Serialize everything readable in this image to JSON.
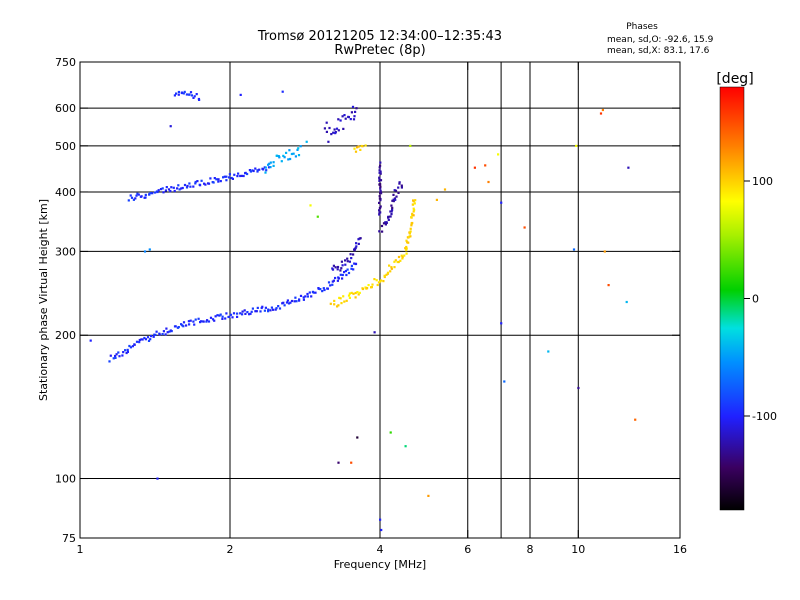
{
  "chart_data": {
    "type": "scatter",
    "title": "Tromsø 20121205 12:34:00–12:35:43",
    "subtitle": "RwPretec (8p)",
    "xlabel": "Frequency [MHz]",
    "ylabel": "Stationary phase Virtual Height [km]",
    "x_scale": "log",
    "y_scale": "log",
    "xlim": [
      1,
      16
    ],
    "ylim": [
      75,
      750
    ],
    "x_ticks": [
      1,
      2,
      4,
      6,
      8,
      10,
      16
    ],
    "x_tick_labels": [
      "1",
      "2",
      "4",
      "6",
      "8",
      "10",
      "16"
    ],
    "x_grid": [
      2,
      4,
      6,
      7,
      8,
      10
    ],
    "y_ticks": [
      75,
      100,
      200,
      300,
      400,
      500,
      600,
      750
    ],
    "y_tick_labels": [
      "75",
      "100",
      "200",
      "300",
      "400",
      "500",
      "600",
      "750"
    ],
    "y_grid": [
      100,
      200,
      300,
      400,
      500,
      600
    ],
    "grid": true,
    "phase_legend": {
      "title": "Phases",
      "line1": "mean, sd,O: -92.6, 15.9",
      "line2": "mean, sd,X: 83.1, 17.6"
    },
    "colorbar": {
      "label": "[deg]",
      "range": [
        -180,
        180
      ],
      "ticks": [
        100,
        0,
        -100
      ],
      "tick_labels": [
        "100",
        "0",
        "-100"
      ]
    },
    "traces": [
      {
        "type": "curve",
        "x": [
          1.15,
          1.3,
          1.45,
          1.6,
          1.8,
          2.0,
          2.2,
          2.5,
          2.8,
          3.1,
          3.4,
          3.6
        ],
        "y": [
          178,
          192,
          202,
          210,
          216,
          220,
          224,
          230,
          240,
          252,
          268,
          285
        ],
        "phase": -95,
        "jitter": 0.012
      },
      {
        "type": "curve",
        "x": [
          3.2,
          3.4,
          3.55,
          3.65
        ],
        "y": [
          272,
          285,
          300,
          320
        ],
        "phase": -120,
        "jitter": 0.02
      },
      {
        "type": "curve",
        "x": [
          1.25,
          1.4,
          1.6,
          1.8,
          2.0,
          2.2,
          2.4
        ],
        "y": [
          388,
          398,
          410,
          420,
          430,
          440,
          450
        ],
        "phase": -95,
        "jitter": 0.012
      },
      {
        "type": "curve",
        "x": [
          1.55,
          1.65,
          1.75
        ],
        "y": [
          640,
          645,
          630
        ],
        "phase": -95,
        "jitter": 0.01
      },
      {
        "type": "curve",
        "x": [
          2.35,
          2.5,
          2.65,
          2.8
        ],
        "y": [
          450,
          470,
          480,
          490
        ],
        "phase": -45,
        "jitter": 0.02
      },
      {
        "type": "curve",
        "x": [
          3.1,
          3.3,
          3.5,
          3.6
        ],
        "y": [
          540,
          555,
          580,
          600
        ],
        "phase": -120,
        "jitter": 0.03
      },
      {
        "type": "curve",
        "x": [
          3.2,
          3.45,
          3.7,
          3.9,
          4.1
        ],
        "y": [
          232,
          240,
          250,
          258,
          265
        ],
        "phase": 95,
        "jitter": 0.015
      },
      {
        "type": "curve",
        "x": [
          4.1,
          4.3,
          4.5,
          4.6,
          4.65,
          4.7
        ],
        "y": [
          270,
          285,
          300,
          330,
          360,
          390
        ],
        "phase": 100,
        "jitter": 0.015
      },
      {
        "type": "curve",
        "x": [
          4.0,
          4.1,
          4.2,
          4.3,
          4.45
        ],
        "y": [
          330,
          340,
          360,
          400,
          420
        ],
        "phase": -125,
        "jitter": 0.02
      },
      {
        "type": "curve",
        "x": [
          4.0,
          4.0,
          4.0
        ],
        "y": [
          360,
          420,
          460
        ],
        "phase": -130,
        "jitter": 0.01
      },
      {
        "type": "curve",
        "x": [
          3.55,
          3.75
        ],
        "y": [
          490,
          500
        ],
        "phase": 100,
        "jitter": 0.01
      },
      {
        "type": "points",
        "x": [
          1.0,
          1.05,
          1.35,
          1.38,
          1.43,
          1.52,
          2.1,
          2.55,
          2.85,
          2.9,
          3.0,
          3.15,
          3.25,
          3.3,
          3.5,
          3.6,
          3.9,
          4.0,
          4.02,
          4.2,
          4.5,
          4.6,
          5.0,
          5.2,
          5.4,
          6.2,
          6.5,
          6.6,
          6.9,
          7.0,
          7.0,
          7.1,
          7.8,
          8.7,
          9.8,
          9.9,
          10.0,
          11.1,
          11.2,
          11.3,
          11.5,
          12.5,
          12.6,
          13.0
        ],
        "y": [
          103,
          195,
          300,
          303,
          100,
          550,
          640,
          650,
          510,
          375,
          355,
          510,
          532,
          108,
          108,
          122,
          203,
          82,
          78,
          125,
          117,
          500,
          92,
          385,
          405,
          450,
          455,
          420,
          480,
          380,
          212,
          160,
          337,
          185,
          303,
          500,
          155,
          585,
          595,
          300,
          255,
          235,
          450,
          133
        ],
        "phases": [
          -110,
          -100,
          -60,
          -55,
          -100,
          -110,
          -100,
          -95,
          -40,
          80,
          30,
          -120,
          -110,
          -140,
          150,
          -160,
          -120,
          -100,
          -100,
          20,
          -10,
          60,
          120,
          110,
          110,
          160,
          150,
          130,
          80,
          -100,
          -100,
          -70,
          150,
          -40,
          -70,
          80,
          -130,
          160,
          130,
          120,
          150,
          -40,
          -120,
          140
        ]
      }
    ]
  }
}
